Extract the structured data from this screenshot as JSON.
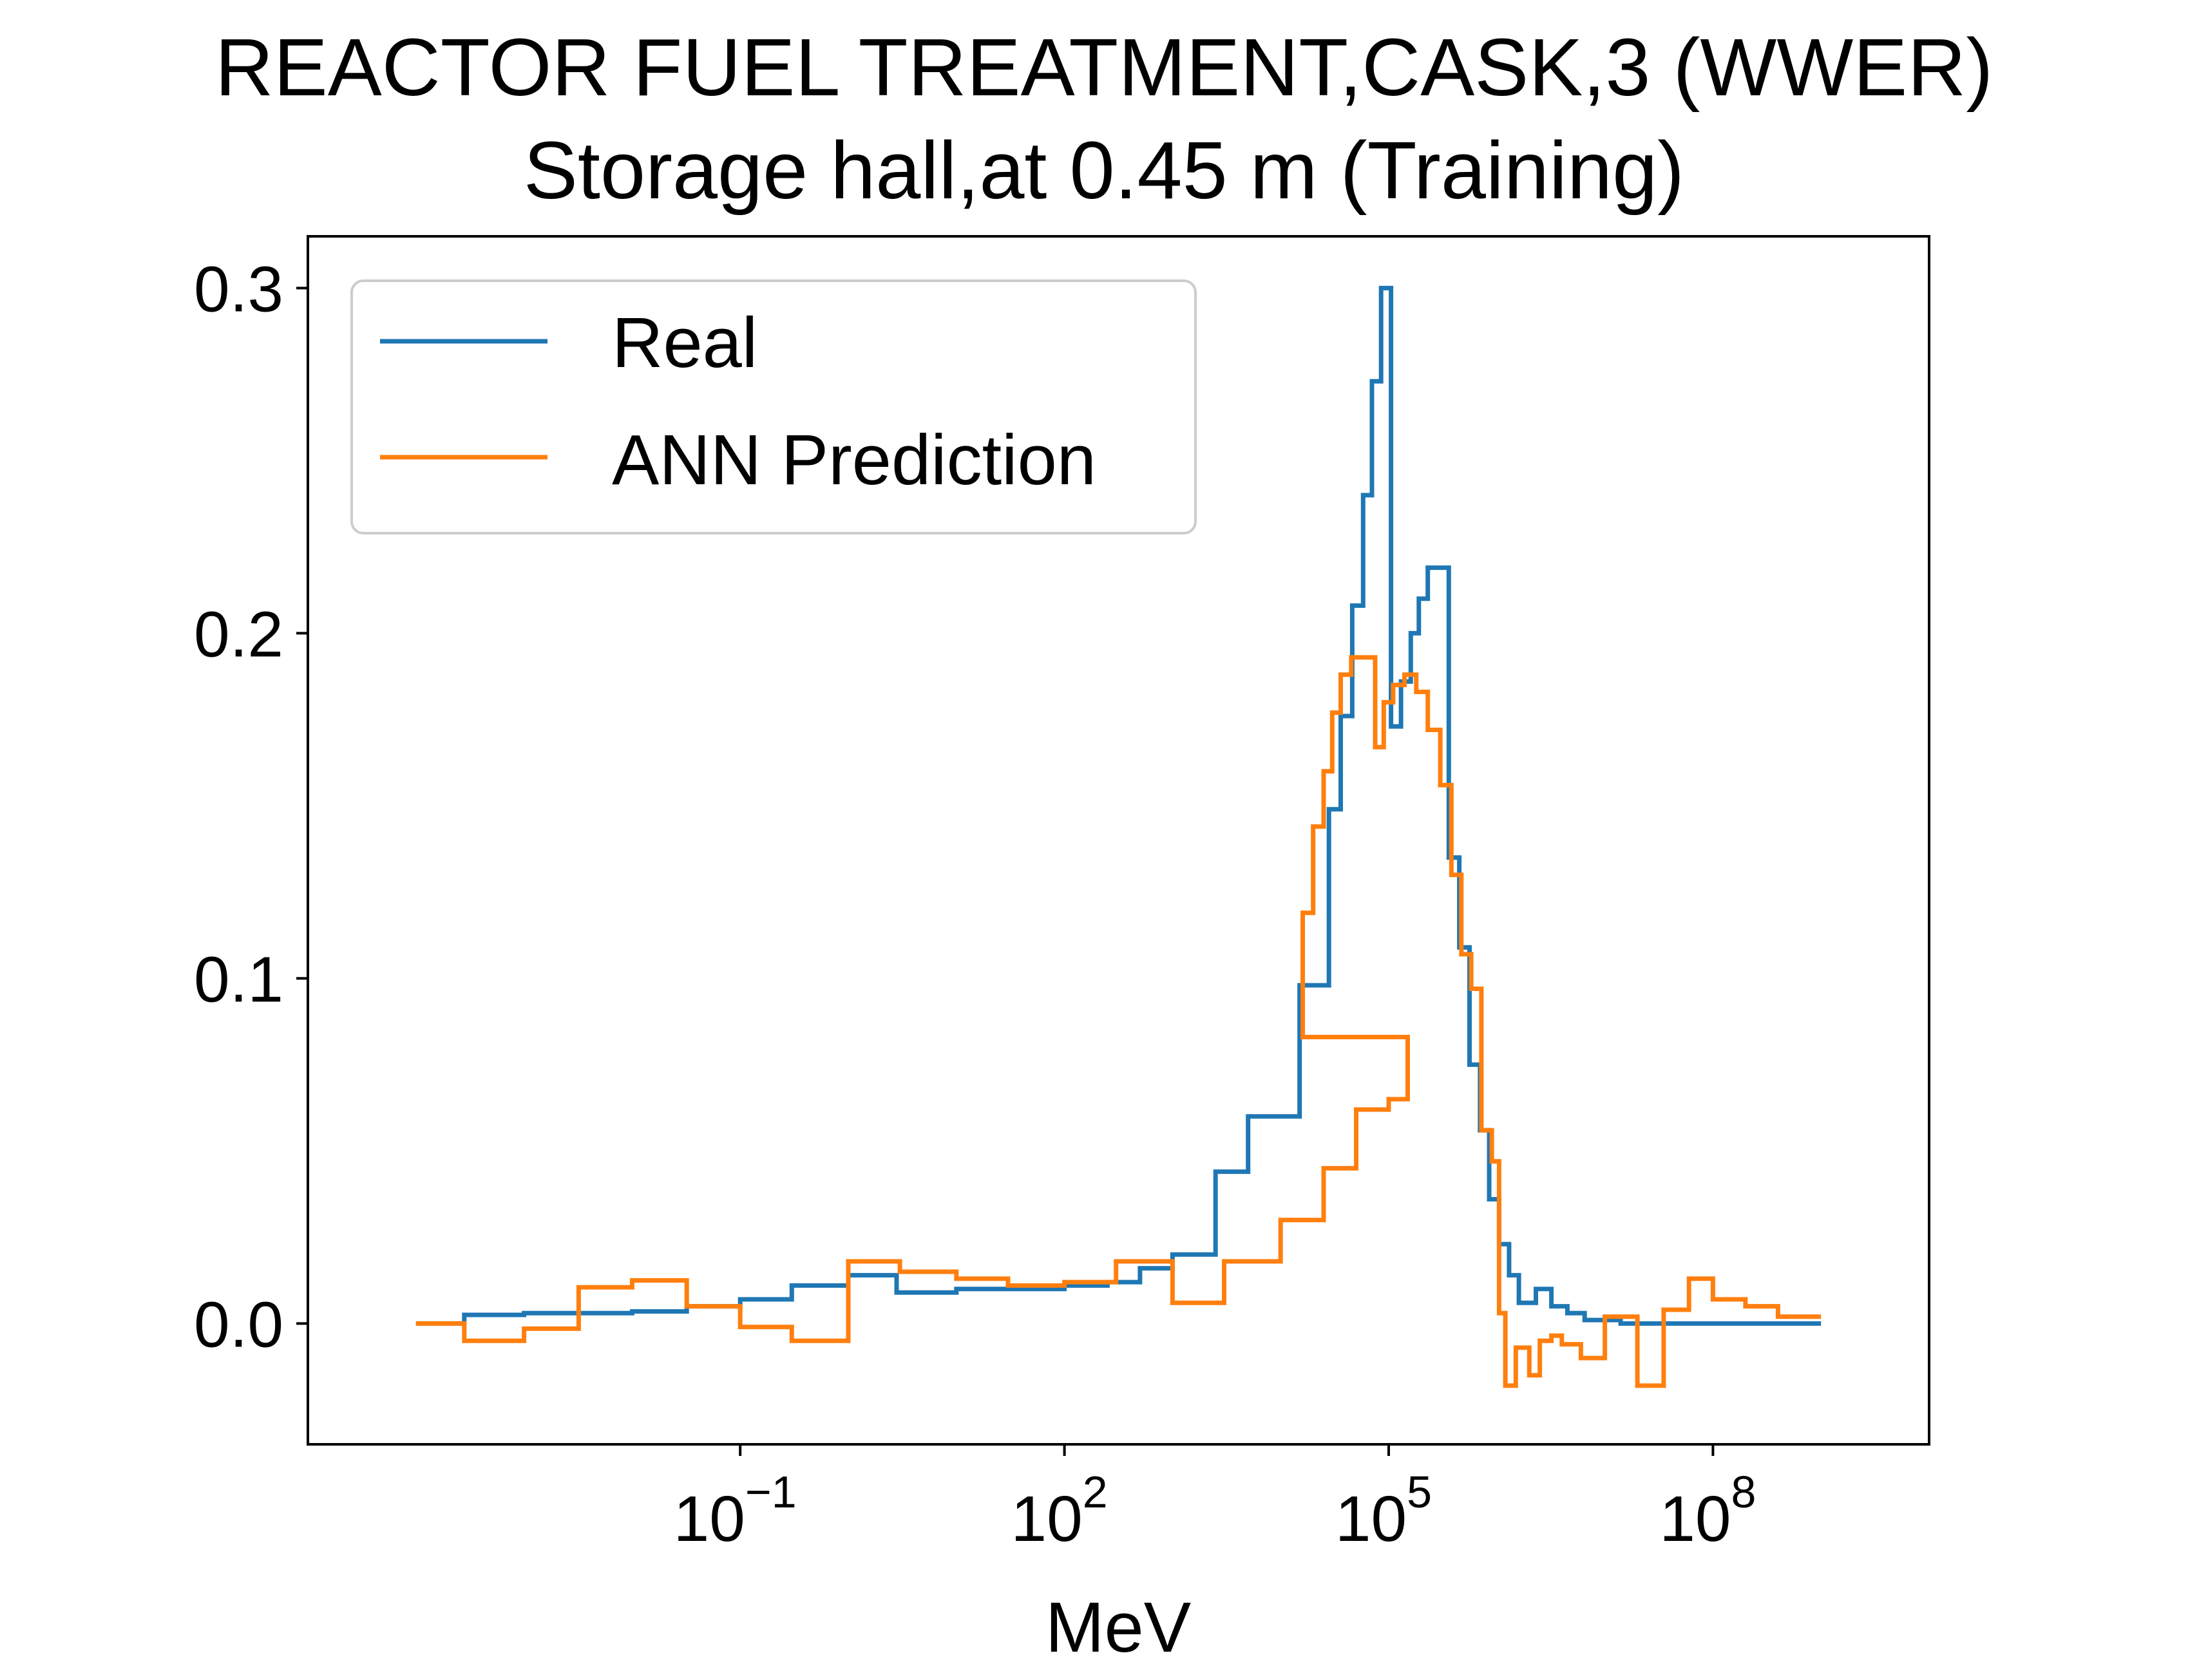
{
  "chart_data": {
    "type": "line",
    "title": "REACTOR FUEL TREATMENT,CASK,3 (WWER)",
    "subtitle": "Storage hall,at 0.45 m (Training)",
    "xlabel": "MeV",
    "ylabel": "",
    "x_scale": "log",
    "xlim": [
      1e-05,
      10000000000.0
    ],
    "ylim": [
      -0.035,
      0.315
    ],
    "x_ticks": [
      {
        "value": 0.1,
        "base": "10",
        "exp": "−1"
      },
      {
        "value": 100,
        "base": "10",
        "exp": "2"
      },
      {
        "value": 100000,
        "base": "10",
        "exp": "5"
      },
      {
        "value": 100000000,
        "base": "10",
        "exp": "8"
      }
    ],
    "y_ticks": [
      {
        "value": 0.0,
        "label": "0.0"
      },
      {
        "value": 0.1,
        "label": "0.1"
      },
      {
        "value": 0.2,
        "label": "0.2"
      },
      {
        "value": 0.3,
        "label": "0.3"
      }
    ],
    "grid": false,
    "legend_position": "upper-left",
    "series": [
      {
        "name": "Real",
        "color": "#1f77b4",
        "step": "post",
        "points": [
          [
            0.0001,
            0.0
          ],
          [
            0.00028,
            0.0025
          ],
          [
            0.001,
            0.003
          ],
          [
            0.01,
            0.0035
          ],
          [
            0.032,
            0.005
          ],
          [
            0.1,
            0.007
          ],
          [
            0.3,
            0.011
          ],
          [
            1,
            0.014
          ],
          [
            2.8,
            0.009
          ],
          [
            10,
            0.01
          ],
          [
            100,
            0.011
          ],
          [
            250,
            0.012
          ],
          [
            500,
            0.016
          ],
          [
            1000,
            0.02
          ],
          [
            2500,
            0.044
          ],
          [
            5000,
            0.06
          ],
          [
            15000,
            0.098
          ],
          [
            28000,
            0.149
          ],
          [
            36000,
            0.176
          ],
          [
            46000,
            0.208
          ],
          [
            58000,
            0.24
          ],
          [
            70000,
            0.273
          ],
          [
            85000,
            0.3
          ],
          [
            105000,
            0.173
          ],
          [
            130000,
            0.186
          ],
          [
            160000,
            0.2
          ],
          [
            190000,
            0.21
          ],
          [
            230000,
            0.219
          ],
          [
            360000,
            0.135
          ],
          [
            450000,
            0.109
          ],
          [
            560000,
            0.075
          ],
          [
            700000,
            0.056
          ],
          [
            850000,
            0.036
          ],
          [
            1050000,
            0.023
          ],
          [
            1300000,
            0.014
          ],
          [
            1600000,
            0.006
          ],
          [
            2300000,
            0.01
          ],
          [
            3200000,
            0.005
          ],
          [
            4500000,
            0.003
          ],
          [
            6500000,
            0.001
          ],
          [
            14000000,
            0.0
          ],
          [
            1000000000,
            0.0
          ]
        ]
      },
      {
        "name": "ANN Prediction",
        "color": "#ff7f0e",
        "step": "post",
        "points": [
          [
            0.0001,
            0.0
          ],
          [
            0.00028,
            -0.005
          ],
          [
            0.001,
            -0.0015
          ],
          [
            0.0032,
            0.0105
          ],
          [
            0.01,
            0.0125
          ],
          [
            0.032,
            0.005
          ],
          [
            0.1,
            -0.001
          ],
          [
            0.3,
            -0.005
          ],
          [
            1,
            0.018
          ],
          [
            3,
            0.015
          ],
          [
            10,
            0.013
          ],
          [
            30,
            0.011
          ],
          [
            100,
            0.012
          ],
          [
            300,
            0.018
          ],
          [
            1000,
            0.006
          ],
          [
            3000,
            0.018
          ],
          [
            10000,
            0.03
          ],
          [
            25000,
            0.045
          ],
          [
            50000,
            0.062
          ],
          [
            100000,
            0.065
          ],
          [
            150000,
            0.083
          ],
          [
            16000,
            0.119
          ],
          [
            20000,
            0.144
          ],
          [
            25000,
            0.16
          ],
          [
            30000,
            0.177
          ],
          [
            36000,
            0.188
          ],
          [
            45000,
            0.193
          ],
          [
            75000,
            0.167
          ],
          [
            90000,
            0.18
          ],
          [
            110000,
            0.185
          ],
          [
            140000,
            0.188
          ],
          [
            180000,
            0.183
          ],
          [
            230000,
            0.172
          ],
          [
            300000,
            0.156
          ],
          [
            380000,
            0.13
          ],
          [
            470000,
            0.107
          ],
          [
            580000,
            0.097
          ],
          [
            720000,
            0.056
          ],
          [
            900000,
            0.047
          ],
          [
            1050000,
            0.003
          ],
          [
            1200000,
            -0.018
          ],
          [
            1500000,
            -0.007
          ],
          [
            2000000,
            -0.015
          ],
          [
            2500000,
            -0.005
          ],
          [
            3200000,
            -0.0035
          ],
          [
            4000000,
            -0.006
          ],
          [
            6000000,
            -0.01
          ],
          [
            10000000,
            0.002
          ],
          [
            20000000,
            -0.018
          ],
          [
            35000000,
            0.004
          ],
          [
            60000000,
            0.013
          ],
          [
            100000000,
            0.007
          ],
          [
            200000000,
            0.005
          ],
          [
            400000000,
            0.002
          ],
          [
            1000000000,
            0.002
          ]
        ]
      }
    ]
  }
}
